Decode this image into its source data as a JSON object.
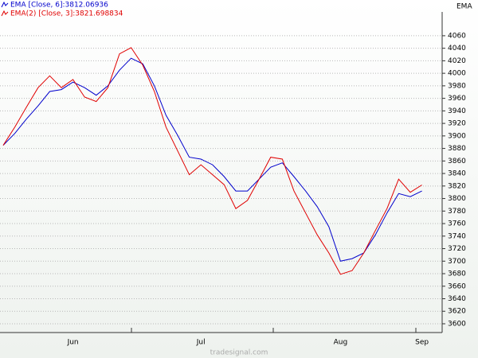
{
  "chart_data": {
    "type": "line",
    "title": "EMA",
    "watermark": "tradesignal.com",
    "categories": [
      null,
      null,
      null,
      null,
      null,
      null,
      "Jun",
      null,
      null,
      null,
      null,
      null,
      null,
      null,
      null,
      null,
      null,
      "Jul",
      null,
      null,
      null,
      null,
      null,
      null,
      null,
      null,
      null,
      null,
      null,
      "Aug",
      null,
      null,
      null,
      null,
      null,
      null,
      "Sep"
    ],
    "series": [
      {
        "name": "EMA [Close, 6]:3812.06936",
        "color": "#0000cc",
        "values": [
          3885,
          3904,
          3927,
          3948,
          3971,
          3974,
          3986,
          3977,
          3965,
          3980,
          4005,
          4024,
          4015,
          3980,
          3933,
          3901,
          3866,
          3863,
          3854,
          3835,
          3812,
          3812,
          3831,
          3850,
          3857,
          3835,
          3812,
          3787,
          3755,
          3700,
          3704,
          3713,
          3742,
          3777,
          3808,
          3803,
          3812.06936
        ]
      },
      {
        "name": "EMA(2) [Close, 3]:3821.698834",
        "color": "#e00000",
        "values": [
          3885,
          3914,
          3946,
          3977,
          3996,
          3977,
          3990,
          3962,
          3955,
          3977,
          4031,
          4041,
          4013,
          3971,
          3914,
          3876,
          3838,
          3854,
          3838,
          3822,
          3784,
          3797,
          3831,
          3866,
          3863,
          3812,
          3777,
          3742,
          3713,
          3679,
          3685,
          3713,
          3749,
          3784,
          3831,
          3810,
          3821.698834
        ]
      }
    ],
    "ylim": [
      3586,
      4098
    ],
    "yticks": [
      3600,
      3620,
      3640,
      3660,
      3680,
      3700,
      3720,
      3740,
      3760,
      3780,
      3800,
      3820,
      3840,
      3860,
      3880,
      3900,
      3920,
      3940,
      3960,
      3980,
      4000,
      4020,
      4040,
      4060
    ],
    "grid": true
  }
}
